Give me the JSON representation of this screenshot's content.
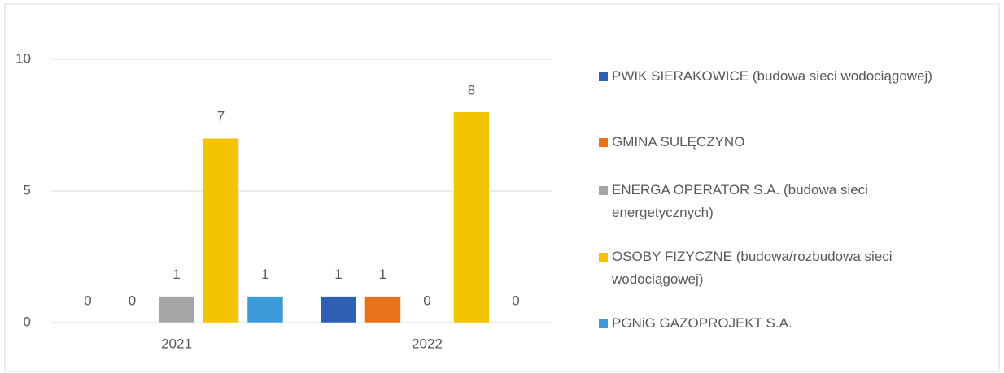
{
  "chart_data": {
    "type": "bar",
    "categories": [
      "2021",
      "2022"
    ],
    "series": [
      {
        "name": "PWIK SIERAKOWICE (budowa sieci wodociągowej)",
        "color": "#2e5fb5",
        "values": [
          0,
          1
        ]
      },
      {
        "name": "GMINA SULĘCZYNO",
        "color": "#e8711c",
        "values": [
          0,
          1
        ]
      },
      {
        "name": "ENERGA OPERATOR S.A. (budowa sieci energetycznych)",
        "color": "#a5a5a5",
        "values": [
          1,
          0
        ]
      },
      {
        "name": "OSOBY FIZYCZNE (budowa/rozbudowa sieci wodociągowej)",
        "color": "#f5c400",
        "values": [
          7,
          8
        ]
      },
      {
        "name": "PGNiG GAZOPROJEKT S.A.",
        "color": "#3d9ad8",
        "values": [
          1,
          0
        ]
      }
    ],
    "ylim": [
      0,
      10
    ],
    "yticks": [
      0,
      5,
      10
    ],
    "grid": true,
    "legend": "right"
  }
}
